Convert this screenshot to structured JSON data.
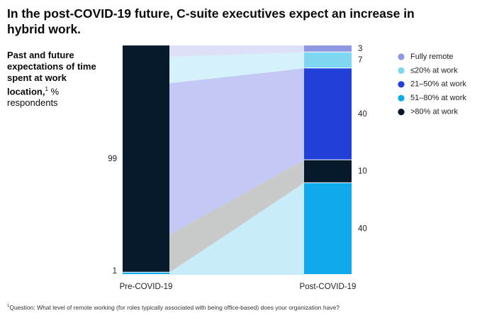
{
  "title": "In the post-COVID-19 future, C-suite executives expect an increase in hybrid work.",
  "subtitle_bold": "Past and future expectations of time spent at work location,",
  "subtitle_sup": "1",
  "subtitle_rest": "% respondents",
  "footnote_sup": "1",
  "footnote": "Question: What level of remote working (for roles typically associated with being office-based) does your organization have?",
  "chart_data": {
    "type": "bar",
    "categories": [
      "Pre-COVID-19",
      "Post-COVID-19"
    ],
    "series": [
      {
        "name": "Fully remote",
        "color": "#8f98e3",
        "flow_color": "#dde0f7",
        "values": [
          0,
          3
        ]
      },
      {
        "name": "≤20% at work",
        "color": "#7fd6f1",
        "flow_color": "#d5f1fb",
        "values": [
          0,
          7
        ]
      },
      {
        "name": "21–50% at work",
        "color": "#2240d8",
        "flow_color": "#c3c8f4",
        "values": [
          0,
          40
        ]
      },
      {
        "name": ">80% at work",
        "color": "#061a2b",
        "flow_color": "#c8caca",
        "values": [
          99,
          10
        ]
      },
      {
        "name": "51–80% at work",
        "color": "#10a9ec",
        "flow_color": "#c9ecfa",
        "values": [
          1,
          40
        ]
      }
    ],
    "legend": [
      {
        "name": "Fully remote",
        "color": "#8f98e3"
      },
      {
        "name": "≤20% at work",
        "color": "#7fd6f1"
      },
      {
        "name": "21–50% at work",
        "color": "#2240d8"
      },
      {
        "name": "51–80% at work",
        "color": "#10a9ec"
      },
      {
        "name": ">80% at work",
        "color": "#061a2b"
      }
    ],
    "labels_pre": [
      {
        "text": "99",
        "series": ">80% at work"
      },
      {
        "text": "1",
        "series": "51–80% at work"
      }
    ],
    "labels_post": [
      {
        "text": "3",
        "series": "Fully remote"
      },
      {
        "text": "7",
        "series": "≤20% at work"
      },
      {
        "text": "40",
        "series": "21–50% at work"
      },
      {
        "text": "10",
        "series": ">80% at work"
      },
      {
        "text": "40",
        "series": "51–80% at work"
      }
    ],
    "legend_position": "right",
    "grid": false
  }
}
